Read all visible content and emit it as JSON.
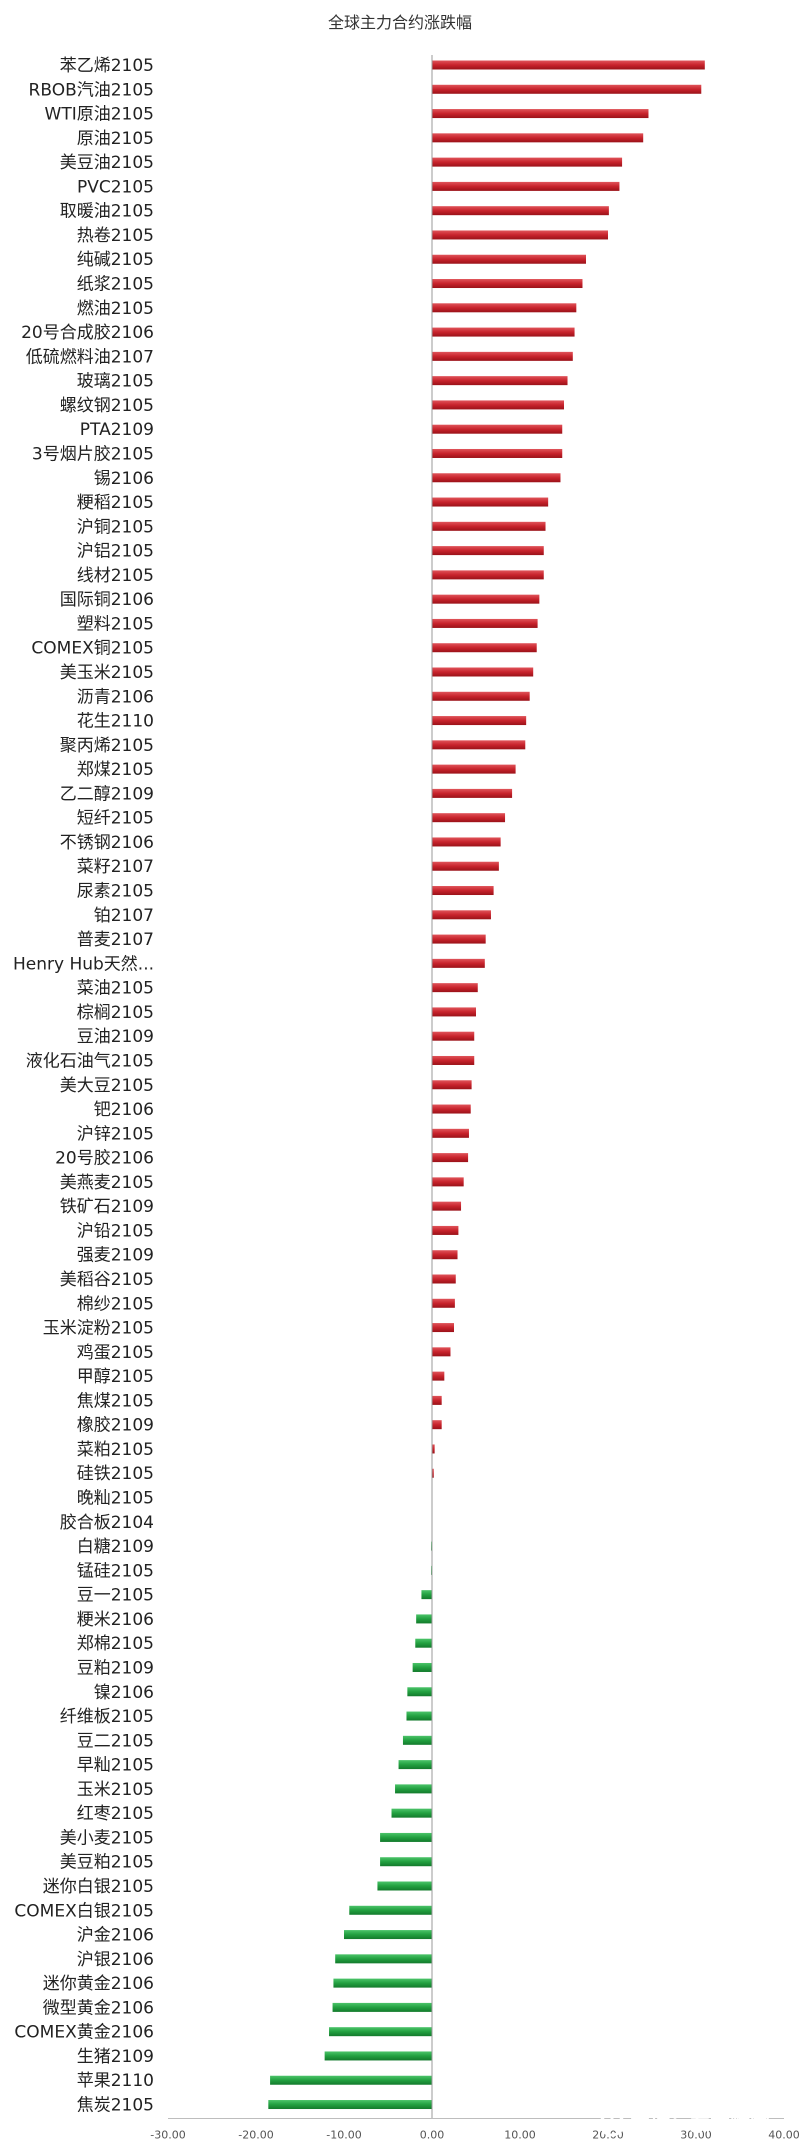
{
  "chart_data": {
    "type": "bar",
    "orientation": "horizontal",
    "title": "全球主力合约涨跌幅",
    "xlabel": "",
    "ylabel": "",
    "xlim": [
      -30,
      40
    ],
    "xticks": [
      -30,
      -20,
      -10,
      0,
      10,
      20,
      30,
      40
    ],
    "tick_labels": [
      "-30.00",
      "-20.00",
      "-10.00",
      "0.00",
      "10.00",
      "20.00",
      "30.00",
      "40.00"
    ],
    "grid": false,
    "legend": "none",
    "categories": [
      "苯乙烯2105",
      "RBOB汽油2105",
      "WTI原油2105",
      "原油2105",
      "美豆油2105",
      "PVC2105",
      "取暖油2105",
      "热卷2105",
      "纯碱2105",
      "纸浆2105",
      "燃油2105",
      "20号合成胶2106",
      "低硫燃料油2107",
      "玻璃2105",
      "螺纹钢2105",
      "PTA2109",
      "3号烟片胶2105",
      "锡2106",
      "粳稻2105",
      "沪铜2105",
      "沪铝2105",
      "线材2105",
      "国际铜2106",
      "塑料2105",
      "COMEX铜2105",
      "美玉米2105",
      "沥青2106",
      "花生2110",
      "聚丙烯2105",
      "郑煤2105",
      "乙二醇2109",
      "短纤2105",
      "不锈钢2106",
      "菜籽2107",
      "尿素2105",
      "铂2107",
      "普麦2107",
      "Henry Hub天然...",
      "菜油2105",
      "棕榈2105",
      "豆油2109",
      "液化石油气2105",
      "美大豆2105",
      "钯2106",
      "沪锌2105",
      "20号胶2106",
      "美燕麦2105",
      "铁矿石2109",
      "沪铅2105",
      "强麦2109",
      "美稻谷2105",
      "棉纱2105",
      "玉米淀粉2105",
      "鸡蛋2105",
      "甲醇2105",
      "焦煤2105",
      "橡胶2109",
      "菜粕2105",
      "硅铁2105",
      "晚籼2105",
      "胶合板2104",
      "白糖2109",
      "锰硅2105",
      "豆一2105",
      "粳米2106",
      "郑棉2105",
      "豆粕2109",
      "镍2106",
      "纤维板2105",
      "豆二2105",
      "早籼2105",
      "玉米2105",
      "红枣2105",
      "美小麦2105",
      "美豆粕2105",
      "迷你白银2105",
      "COMEX白银2105",
      "沪金2106",
      "沪银2106",
      "迷你黄金2106",
      "微型黄金2106",
      "COMEX黄金2106",
      "生猪2109",
      "苹果2110",
      "焦炭2105"
    ],
    "values": [
      31.0,
      30.6,
      24.6,
      24.0,
      21.6,
      21.3,
      20.1,
      20.0,
      17.5,
      17.1,
      16.4,
      16.2,
      16.0,
      15.4,
      15.0,
      14.8,
      14.8,
      14.6,
      13.2,
      12.9,
      12.7,
      12.7,
      12.2,
      12.0,
      11.9,
      11.5,
      11.1,
      10.7,
      10.6,
      9.5,
      9.1,
      8.3,
      7.8,
      7.6,
      7.0,
      6.7,
      6.1,
      6.0,
      5.2,
      5.0,
      4.8,
      4.8,
      4.5,
      4.4,
      4.2,
      4.1,
      3.6,
      3.3,
      3.0,
      2.9,
      2.7,
      2.6,
      2.5,
      2.1,
      1.4,
      1.1,
      1.1,
      0.3,
      0.2,
      0.0,
      0.0,
      -0.1,
      -0.1,
      -1.2,
      -1.8,
      -1.9,
      -2.2,
      -2.8,
      -2.9,
      -3.3,
      -3.8,
      -4.2,
      -4.6,
      -5.9,
      -5.9,
      -6.2,
      -9.4,
      -10.0,
      -11.0,
      -11.2,
      -11.3,
      -11.7,
      -12.2,
      -18.4,
      -18.6
    ],
    "colors": {
      "positive": "#c8232c",
      "negative": "#22a040"
    }
  },
  "watermark": {
    "text": "雪球：东方财富",
    "icon": "snowball-icon"
  }
}
